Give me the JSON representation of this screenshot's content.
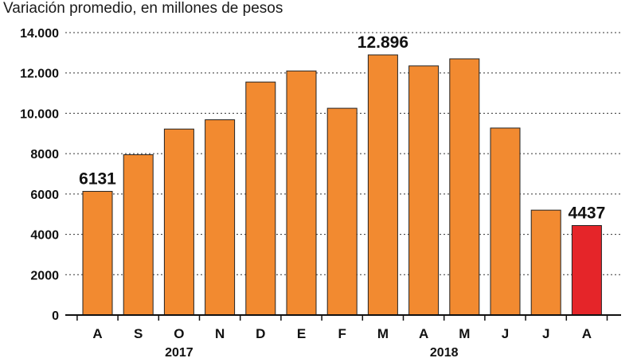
{
  "chart_data": {
    "type": "bar",
    "title": "Variación promedio, en millones de pesos",
    "categories": [
      "A",
      "S",
      "O",
      "N",
      "D",
      "E",
      "F",
      "M",
      "A",
      "M",
      "J",
      "J",
      "A"
    ],
    "values": [
      6131,
      7950,
      9220,
      9680,
      11550,
      12100,
      10250,
      12896,
      12350,
      12700,
      9270,
      5200,
      4437
    ],
    "ylim": [
      0,
      14000
    ],
    "yticks": [
      0,
      2000,
      4000,
      6000,
      8000,
      10000,
      12000,
      14000
    ],
    "ytick_labels": [
      "0",
      "2000",
      "4000",
      "6000",
      "8000",
      "10.000",
      "12.000",
      "14.000"
    ],
    "year_labels": [
      {
        "label": "2017",
        "under_index": 2
      },
      {
        "label": "2018",
        "under_index": 8.5
      }
    ],
    "data_labels": [
      {
        "index": 0,
        "text": "6131"
      },
      {
        "index": 7,
        "text": "12.896"
      },
      {
        "index": 12,
        "text": "4437"
      }
    ],
    "bar_color": "#f28a30",
    "highlight_index": 12,
    "highlight_color": "#e52529",
    "grid": true,
    "grid_style": "dotted horizontal"
  }
}
